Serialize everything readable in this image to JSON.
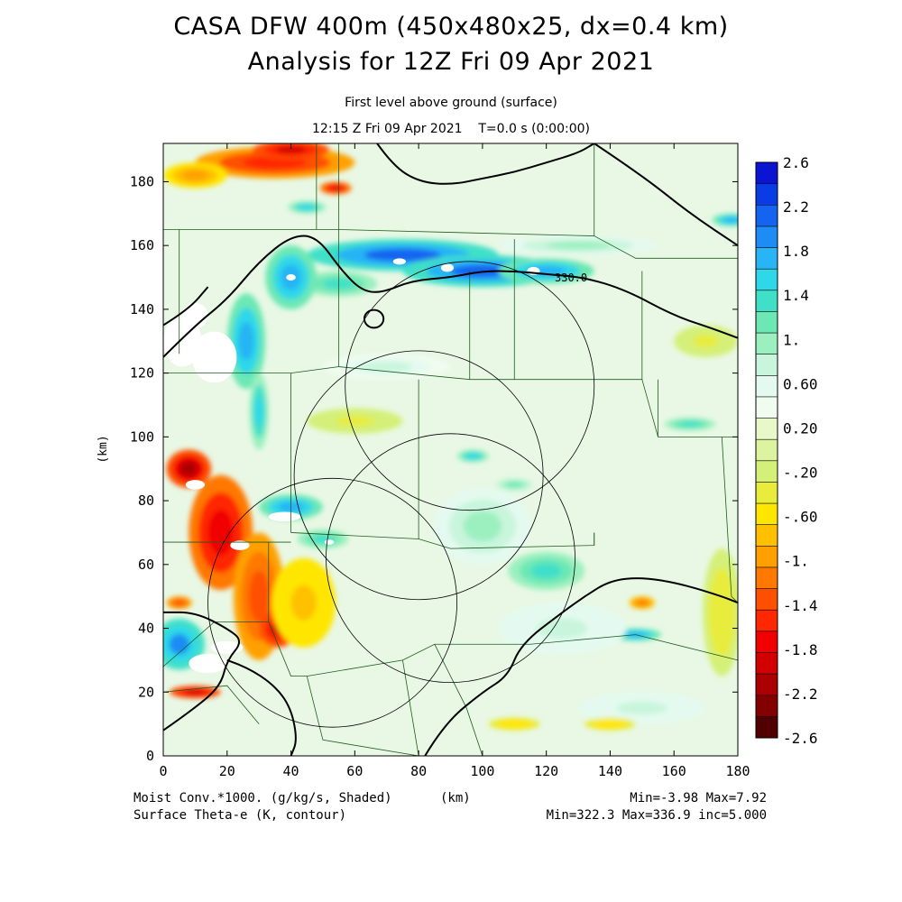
{
  "header": {
    "title_line1": "CASA DFW 400m (450x480x25, dx=0.4 km)",
    "title_line2": "Analysis for 12Z Fri 09 Apr 2021",
    "subtitle_line1": "First level above ground (surface)",
    "subtitle_line2": "12:15 Z Fri 09 Apr 2021    T=0.0 s (0:00:00)"
  },
  "footer": {
    "left_line1": "Moist Conv.*1000. (g/kg/s, Shaded)",
    "unit_label": "(km)",
    "left_line2": "Surface Theta-e (K, contour)",
    "right_line1": "Min=-3.98 Max=7.92",
    "right_line2": "Min=322.3 Max=336.9 inc=5.000"
  },
  "chart_data": {
    "type": "heatmap",
    "xlabel": "",
    "ylabel": "(km)",
    "xlim": [
      0,
      180
    ],
    "ylim": [
      0,
      192
    ],
    "x_ticks": [
      0,
      20,
      40,
      60,
      80,
      100,
      120,
      140,
      160,
      180
    ],
    "y_ticks": [
      0,
      20,
      40,
      60,
      80,
      100,
      120,
      140,
      160,
      180
    ],
    "shaded_field": "Moist Conv.*1000. (g/kg/s)",
    "contour_field": "Surface Theta-e (K)",
    "contour_label": "330.0",
    "colorbar": {
      "labels": [
        "2.6",
        "2.2",
        "1.8",
        "1.4",
        "1.",
        "0.60",
        "0.20",
        "-.20",
        "-.60",
        "-1.",
        "-1.4",
        "-1.8",
        "-2.2",
        "-2.6"
      ],
      "colors": [
        "#0a14d2",
        "#0a3ce6",
        "#1464f0",
        "#1e8cf5",
        "#28b4f5",
        "#2ed8e8",
        "#40e0c8",
        "#6ce8b4",
        "#9cf0c0",
        "#c8f5dc",
        "#e4faf0",
        "#f0fcf0",
        "#e8f8c8",
        "#dcf4a0",
        "#d4f078",
        "#e8ec3c",
        "#ffe600",
        "#ffc000",
        "#ffa000",
        "#ff7800",
        "#ff5000",
        "#ff2800",
        "#f00000",
        "#d20000",
        "#aa0000",
        "#820000",
        "#500000"
      ]
    },
    "radar_circles": [
      {
        "cx": 96,
        "cy": 116,
        "r": 39
      },
      {
        "cx": 80,
        "cy": 88,
        "r": 39
      },
      {
        "cx": 90,
        "cy": 62,
        "r": 39
      },
      {
        "cx": 53,
        "cy": 48,
        "r": 39
      }
    ],
    "features": [
      {
        "kind": "blue",
        "x": 75,
        "y": 157,
        "rx": 30,
        "ry": 5,
        "v": 2.2
      },
      {
        "kind": "blue",
        "x": 100,
        "y": 152,
        "rx": 25,
        "ry": 5,
        "v": 2.1
      },
      {
        "kind": "blue",
        "x": 120,
        "y": 152,
        "rx": 15,
        "ry": 4,
        "v": 1.8
      },
      {
        "kind": "blue",
        "x": 55,
        "y": 148,
        "rx": 12,
        "ry": 4,
        "v": 1.4
      },
      {
        "kind": "blue",
        "x": 40,
        "y": 150,
        "rx": 8,
        "ry": 10,
        "v": 1.8
      },
      {
        "kind": "blue",
        "x": 130,
        "y": 160,
        "rx": 25,
        "ry": 3,
        "v": 1.0
      },
      {
        "kind": "blue",
        "x": 26,
        "y": 130,
        "rx": 6,
        "ry": 15,
        "v": 1.8
      },
      {
        "kind": "blue",
        "x": 30,
        "y": 108,
        "rx": 3,
        "ry": 12,
        "v": 1.6
      },
      {
        "kind": "blue",
        "x": 40,
        "y": 78,
        "rx": 10,
        "ry": 4,
        "v": 1.8
      },
      {
        "kind": "blue",
        "x": 50,
        "y": 68,
        "rx": 8,
        "ry": 3,
        "v": 1.4
      },
      {
        "kind": "blue",
        "x": 120,
        "y": 58,
        "rx": 12,
        "ry": 6,
        "v": 1.4
      },
      {
        "kind": "blue",
        "x": 5,
        "y": 35,
        "rx": 8,
        "ry": 8,
        "v": 2.0
      },
      {
        "kind": "blue",
        "x": 148,
        "y": 38,
        "rx": 8,
        "ry": 2,
        "v": 1.8
      },
      {
        "kind": "blue",
        "x": 97,
        "y": 94,
        "rx": 5,
        "ry": 2,
        "v": 1.6
      },
      {
        "kind": "blue",
        "x": 110,
        "y": 85,
        "rx": 6,
        "ry": 2,
        "v": 1.2
      },
      {
        "kind": "blue",
        "x": 178,
        "y": 168,
        "rx": 6,
        "ry": 2,
        "v": 1.8
      },
      {
        "kind": "blue",
        "x": 165,
        "y": 104,
        "rx": 8,
        "ry": 2,
        "v": 1.4
      },
      {
        "kind": "blue",
        "x": 45,
        "y": 172,
        "rx": 6,
        "ry": 2,
        "v": 1.6
      },
      {
        "kind": "blue",
        "x": 70,
        "y": 122,
        "rx": 20,
        "ry": 4,
        "v": 0.7
      },
      {
        "kind": "blue",
        "x": 100,
        "y": 72,
        "rx": 15,
        "ry": 12,
        "v": 0.9
      },
      {
        "kind": "blue",
        "x": 125,
        "y": 40,
        "rx": 20,
        "ry": 8,
        "v": 0.8
      },
      {
        "kind": "blue",
        "x": 150,
        "y": 15,
        "rx": 20,
        "ry": 5,
        "v": 0.8
      },
      {
        "kind": "red",
        "x": 35,
        "y": 186,
        "rx": 25,
        "ry": 5,
        "v": -1.6
      },
      {
        "kind": "red",
        "x": 40,
        "y": 190,
        "rx": 12,
        "ry": 3,
        "v": -2.0
      },
      {
        "kind": "red",
        "x": 10,
        "y": 182,
        "rx": 10,
        "ry": 4,
        "v": -1.0
      },
      {
        "kind": "red",
        "x": 54,
        "y": 178,
        "rx": 5,
        "ry": 2,
        "v": -1.8
      },
      {
        "kind": "red",
        "x": 8,
        "y": 90,
        "rx": 7,
        "ry": 6,
        "v": -2.2
      },
      {
        "kind": "red",
        "x": 18,
        "y": 70,
        "rx": 10,
        "ry": 18,
        "v": -1.8
      },
      {
        "kind": "red",
        "x": 30,
        "y": 50,
        "rx": 8,
        "ry": 20,
        "v": -1.4
      },
      {
        "kind": "red",
        "x": 36,
        "y": 40,
        "rx": 6,
        "ry": 6,
        "v": -2.0
      },
      {
        "kind": "red",
        "x": 10,
        "y": 20,
        "rx": 8,
        "ry": 2,
        "v": -2.0
      },
      {
        "kind": "red",
        "x": 47,
        "y": 57,
        "rx": 5,
        "ry": 2,
        "v": -1.6
      },
      {
        "kind": "red",
        "x": 150,
        "y": 48,
        "rx": 4,
        "ry": 2,
        "v": -1.2
      },
      {
        "kind": "red",
        "x": 140,
        "y": 10,
        "rx": 8,
        "ry": 2,
        "v": -0.6
      },
      {
        "kind": "red",
        "x": 110,
        "y": 10,
        "rx": 8,
        "ry": 2,
        "v": -0.6
      },
      {
        "kind": "red",
        "x": 44,
        "y": 48,
        "rx": 10,
        "ry": 14,
        "v": -0.8
      },
      {
        "kind": "red",
        "x": 175,
        "y": 45,
        "rx": 6,
        "ry": 20,
        "v": -0.4
      },
      {
        "kind": "red",
        "x": 5,
        "y": 48,
        "rx": 4,
        "ry": 2,
        "v": -1.4
      },
      {
        "kind": "red",
        "x": 170,
        "y": 130,
        "rx": 10,
        "ry": 5,
        "v": -0.3
      },
      {
        "kind": "red",
        "x": 60,
        "y": 105,
        "rx": 15,
        "ry": 4,
        "v": -0.3
      }
    ],
    "white_patches": [
      {
        "x": 6,
        "y": 130,
        "rx": 6,
        "ry": 8
      },
      {
        "x": 16,
        "y": 125,
        "rx": 7,
        "ry": 8
      },
      {
        "x": 10,
        "y": 138,
        "rx": 4,
        "ry": 4
      },
      {
        "x": 10,
        "y": 85,
        "rx": 3,
        "ry": 1.5
      },
      {
        "x": 24,
        "y": 66,
        "rx": 3,
        "ry": 1.5
      },
      {
        "x": 38,
        "y": 75,
        "rx": 5,
        "ry": 1.5
      },
      {
        "x": 14,
        "y": 29,
        "rx": 6,
        "ry": 3
      },
      {
        "x": 20,
        "y": 34,
        "rx": 5,
        "ry": 2
      },
      {
        "x": 74,
        "y": 155,
        "rx": 2,
        "ry": 1
      },
      {
        "x": 89,
        "y": 153,
        "rx": 2,
        "ry": 1.3
      },
      {
        "x": 116,
        "y": 152,
        "rx": 2,
        "ry": 1.3
      },
      {
        "x": 40,
        "y": 150,
        "rx": 1.5,
        "ry": 1
      },
      {
        "x": 52,
        "y": 67,
        "rx": 1.5,
        "ry": 0.8
      }
    ],
    "county_lines": [
      [
        [
          0,
          165
        ],
        [
          55,
          165
        ],
        [
          55,
          192
        ]
      ],
      [
        [
          55,
          165
        ],
        [
          135,
          163
        ],
        [
          135,
          192
        ]
      ],
      [
        [
          135,
          163
        ],
        [
          148,
          156
        ],
        [
          180,
          156
        ]
      ],
      [
        [
          48,
          165
        ],
        [
          48,
          192
        ]
      ],
      [
        [
          5,
          126
        ],
        [
          5,
          165
        ]
      ],
      [
        [
          55,
          165
        ],
        [
          55,
          122
        ],
        [
          40,
          120
        ],
        [
          0,
          120
        ]
      ],
      [
        [
          55,
          122
        ],
        [
          96,
          118
        ],
        [
          96,
          152
        ]
      ],
      [
        [
          96,
          118
        ],
        [
          110,
          118
        ],
        [
          110,
          162
        ]
      ],
      [
        [
          110,
          118
        ],
        [
          150,
          118
        ],
        [
          150,
          152
        ]
      ],
      [
        [
          150,
          118
        ],
        [
          155,
          100
        ],
        [
          180,
          100
        ]
      ],
      [
        [
          155,
          100
        ],
        [
          155,
          118
        ]
      ],
      [
        [
          40,
          120
        ],
        [
          40,
          70
        ]
      ],
      [
        [
          40,
          70
        ],
        [
          80,
          68
        ],
        [
          90,
          65
        ],
        [
          135,
          66
        ],
        [
          135,
          70
        ]
      ],
      [
        [
          80,
          68
        ],
        [
          80,
          118
        ]
      ],
      [
        [
          0,
          67
        ],
        [
          40,
          67
        ]
      ],
      [
        [
          33,
          67
        ],
        [
          33,
          42
        ]
      ],
      [
        [
          33,
          42
        ],
        [
          16,
          42
        ],
        [
          0,
          28
        ]
      ],
      [
        [
          33,
          42
        ],
        [
          40,
          25
        ],
        [
          45,
          25
        ]
      ],
      [
        [
          45,
          25
        ],
        [
          75,
          30
        ],
        [
          85,
          35
        ],
        [
          115,
          35
        ],
        [
          148,
          38
        ],
        [
          180,
          30
        ]
      ],
      [
        [
          75,
          30
        ],
        [
          80,
          0
        ]
      ],
      [
        [
          85,
          35
        ],
        [
          95,
          15
        ],
        [
          100,
          0
        ]
      ],
      [
        [
          0,
          20
        ],
        [
          20,
          22
        ],
        [
          30,
          10
        ]
      ],
      [
        [
          45,
          25
        ],
        [
          50,
          5
        ],
        [
          80,
          0
        ]
      ],
      [
        [
          175,
          100
        ],
        [
          178,
          50
        ],
        [
          180,
          48
        ]
      ],
      [
        [
          135,
          66
        ],
        [
          135,
          70
        ]
      ]
    ],
    "theta_contours": [
      [
        [
          0,
          125
        ],
        [
          10,
          135
        ],
        [
          20,
          143
        ],
        [
          30,
          155
        ],
        [
          40,
          163
        ],
        [
          48,
          163
        ],
        [
          56,
          152
        ],
        [
          62,
          146
        ],
        [
          68,
          145
        ],
        [
          78,
          149
        ],
        [
          90,
          150
        ],
        [
          100,
          152
        ],
        [
          110,
          152
        ],
        [
          120,
          151
        ],
        [
          132,
          150
        ],
        [
          145,
          146
        ],
        [
          160,
          138
        ],
        [
          172,
          134
        ],
        [
          180,
          131
        ]
      ],
      [
        [
          0,
          135
        ],
        [
          8,
          140
        ],
        [
          14,
          147
        ]
      ],
      [
        [
          67,
          192
        ],
        [
          72,
          185
        ],
        [
          80,
          180
        ],
        [
          90,
          179
        ],
        [
          100,
          181
        ],
        [
          110,
          183
        ],
        [
          120,
          186
        ],
        [
          130,
          189
        ],
        [
          135,
          192
        ]
      ],
      [
        [
          135,
          192
        ],
        [
          150,
          182
        ],
        [
          165,
          170
        ],
        [
          180,
          160
        ]
      ],
      [
        [
          82,
          0
        ],
        [
          88,
          10
        ],
        [
          100,
          20
        ],
        [
          108,
          25
        ],
        [
          112,
          35
        ],
        [
          125,
          45
        ],
        [
          132,
          50
        ],
        [
          140,
          55
        ],
        [
          150,
          56
        ],
        [
          162,
          54
        ],
        [
          175,
          50
        ],
        [
          180,
          48
        ]
      ],
      [
        [
          0,
          8
        ],
        [
          10,
          15
        ],
        [
          18,
          22
        ],
        [
          20,
          30
        ],
        [
          25,
          36
        ],
        [
          20,
          40
        ],
        [
          10,
          45
        ],
        [
          0,
          45
        ]
      ],
      [
        [
          20,
          30
        ],
        [
          26,
          28
        ],
        [
          35,
          22
        ],
        [
          40,
          15
        ],
        [
          42,
          5
        ],
        [
          40,
          0
        ]
      ]
    ],
    "theta_closed": [
      {
        "x": 66,
        "y": 137,
        "rx": 3,
        "ry": 2.8
      }
    ]
  }
}
